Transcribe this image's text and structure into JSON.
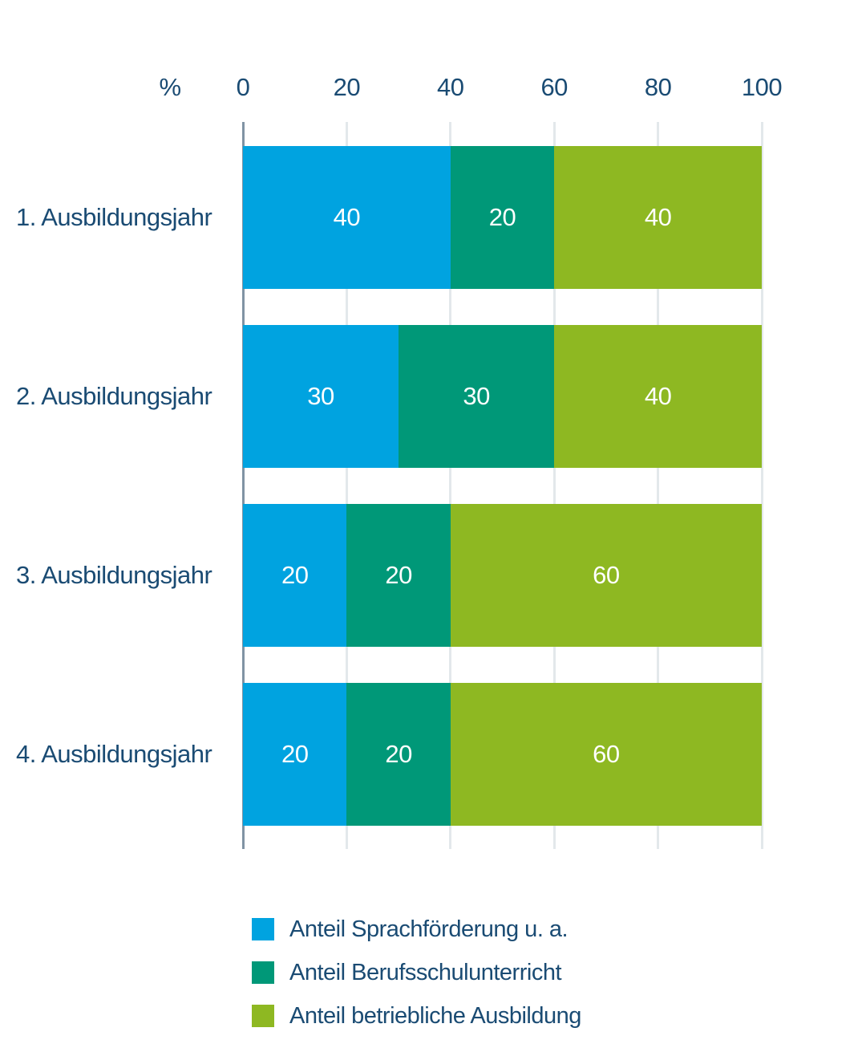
{
  "chart_data": {
    "type": "bar",
    "variant": "horizontal-stacked",
    "unit_label": "%",
    "categories": [
      "1. Ausbildungsjahr",
      "2. Ausbildungsjahr",
      "3. Ausbildungsjahr",
      "4. Ausbildungsjahr"
    ],
    "series": [
      {
        "name": "Anteil Sprachförderung u. a.",
        "color": "#00A3E0",
        "values": [
          40,
          30,
          20,
          20
        ]
      },
      {
        "name": "Anteil Berufsschulunterricht",
        "color": "#009878",
        "values": [
          20,
          30,
          20,
          20
        ]
      },
      {
        "name": "Anteil betriebliche Ausbildung",
        "color": "#8EB822",
        "values": [
          40,
          40,
          60,
          60
        ]
      }
    ],
    "x_ticks": [
      0,
      20,
      40,
      60,
      80,
      100
    ],
    "xlim": [
      0,
      100
    ],
    "grid": "vertical",
    "legend_position": "bottom",
    "value_labels": "inside-white"
  },
  "style_colors": {
    "text_navy": "#1A4B73",
    "gridline": "#E3E8EB",
    "zero_axis": "#8093A4",
    "background": "#FFFFFF"
  }
}
